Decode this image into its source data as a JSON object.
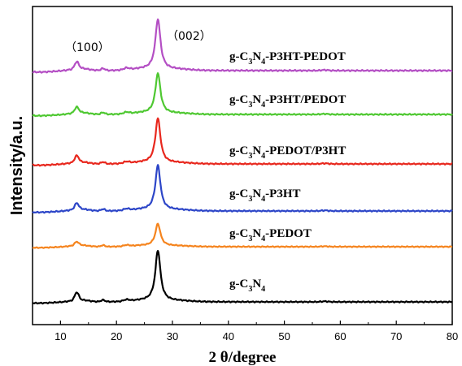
{
  "chart_data": {
    "type": "line",
    "xlabel": "2 θ/degree",
    "ylabel": "Intensity/a.u.",
    "xlim": [
      5,
      80
    ],
    "x_ticks": [
      "10",
      "20",
      "30",
      "40",
      "50",
      "60",
      "70",
      "80"
    ],
    "grid": false,
    "annotations": [
      {
        "text": "（100）",
        "x": 13.0
      },
      {
        "text": "（002）",
        "x": 27.4
      }
    ],
    "peak_positions": [
      12.9,
      27.4
    ],
    "series": [
      {
        "name": "g-C3N4-P3HT-PEDOT",
        "label_parts": [
          "g-C",
          "3",
          "N",
          "4",
          "-P3HT-PEDOT"
        ],
        "color": "#b44fc4",
        "peak_002": 1.0,
        "peak_100": 0.13
      },
      {
        "name": "g-C3N4-P3HT/PEDOT",
        "label_parts": [
          "g-C",
          "3",
          "N",
          "4",
          "-P3HT/PEDOT"
        ],
        "color": "#4fc832",
        "peak_002": 0.9,
        "peak_100": 0.12
      },
      {
        "name": "g-C3N4-PEDOT/P3HT",
        "label_parts": [
          "g-C",
          "3",
          "N",
          "4",
          "-PEDOT/P3HT"
        ],
        "color": "#e8281e",
        "peak_002": 1.0,
        "peak_100": 0.14
      },
      {
        "name": "g-C3N4-P3HT",
        "label_parts": [
          "g-C",
          "3",
          "N",
          "4",
          "-P3HT"
        ],
        "color": "#2d46c8",
        "peak_002": 1.0,
        "peak_100": 0.13
      },
      {
        "name": "g-C3N4-PEDOT",
        "label_parts": [
          "g-C",
          "3",
          "N",
          "4",
          "-PEDOT"
        ],
        "color": "#f5841e",
        "peak_002": 0.65,
        "peak_100": 0.1
      },
      {
        "name": "g-C3N4",
        "label_parts": [
          "g-C",
          "3",
          "N",
          "4",
          ""
        ],
        "color": "#000000",
        "peak_002": 1.2,
        "peak_100": 0.18
      }
    ]
  }
}
